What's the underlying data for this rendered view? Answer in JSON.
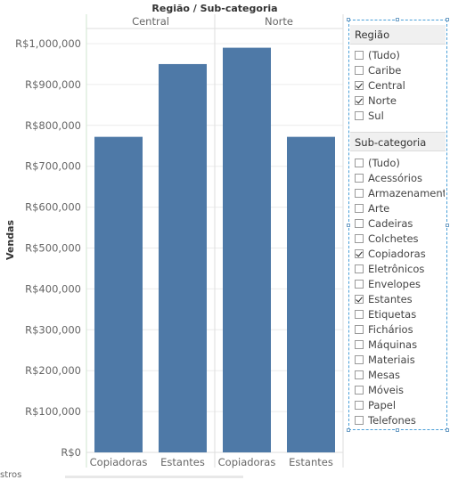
{
  "chart_title": "Região / Sub-categoria",
  "panels": [
    "Central",
    "Norte"
  ],
  "y_axis_title": "Vendas",
  "colors": {
    "bar": "#4e79a7",
    "grid": "#ececec",
    "divider": "#dedede"
  },
  "chart_data": {
    "type": "bar",
    "title": "Região / Sub-categoria",
    "ylabel": "Vendas",
    "xlabel": "",
    "ylim": [
      0,
      1050000
    ],
    "yticks": [
      0,
      100000,
      200000,
      300000,
      400000,
      500000,
      600000,
      700000,
      800000,
      900000,
      1000000
    ],
    "ytick_labels": [
      "R$0",
      "R$100,000",
      "R$200,000",
      "R$300,000",
      "R$400,000",
      "R$500,000",
      "R$600,000",
      "R$700,000",
      "R$800,000",
      "R$900,000",
      "R$1,000,000"
    ],
    "grid": true,
    "groups": [
      {
        "name": "Central",
        "categories": [
          "Copiadoras",
          "Estantes"
        ],
        "values": [
          772000,
          950000
        ]
      },
      {
        "name": "Norte",
        "categories": [
          "Copiadoras",
          "Estantes"
        ],
        "values": [
          990000,
          772000
        ]
      }
    ]
  },
  "filters": [
    {
      "title": "Região",
      "items": [
        {
          "label": "(Tudo)",
          "checked": false
        },
        {
          "label": "Caribe",
          "checked": false
        },
        {
          "label": "Central",
          "checked": true
        },
        {
          "label": "Norte",
          "checked": true
        },
        {
          "label": "Sul",
          "checked": false
        }
      ]
    },
    {
      "title": "Sub-categoria",
      "items": [
        {
          "label": "(Tudo)",
          "checked": false
        },
        {
          "label": "Acessórios",
          "checked": false
        },
        {
          "label": "Armazenamento",
          "checked": false
        },
        {
          "label": "Arte",
          "checked": false
        },
        {
          "label": "Cadeiras",
          "checked": false
        },
        {
          "label": "Colchetes",
          "checked": false
        },
        {
          "label": "Copiadoras",
          "checked": true
        },
        {
          "label": "Eletrônicos",
          "checked": false
        },
        {
          "label": "Envelopes",
          "checked": false
        },
        {
          "label": "Estantes",
          "checked": true
        },
        {
          "label": "Etiquetas",
          "checked": false
        },
        {
          "label": "Fichários",
          "checked": false
        },
        {
          "label": "Máquinas",
          "checked": false
        },
        {
          "label": "Materiais",
          "checked": false
        },
        {
          "label": "Mesas",
          "checked": false
        },
        {
          "label": "Móveis",
          "checked": false
        },
        {
          "label": "Papel",
          "checked": false
        },
        {
          "label": "Telefones",
          "checked": false
        }
      ]
    }
  ],
  "bottom_fragment": "stros"
}
